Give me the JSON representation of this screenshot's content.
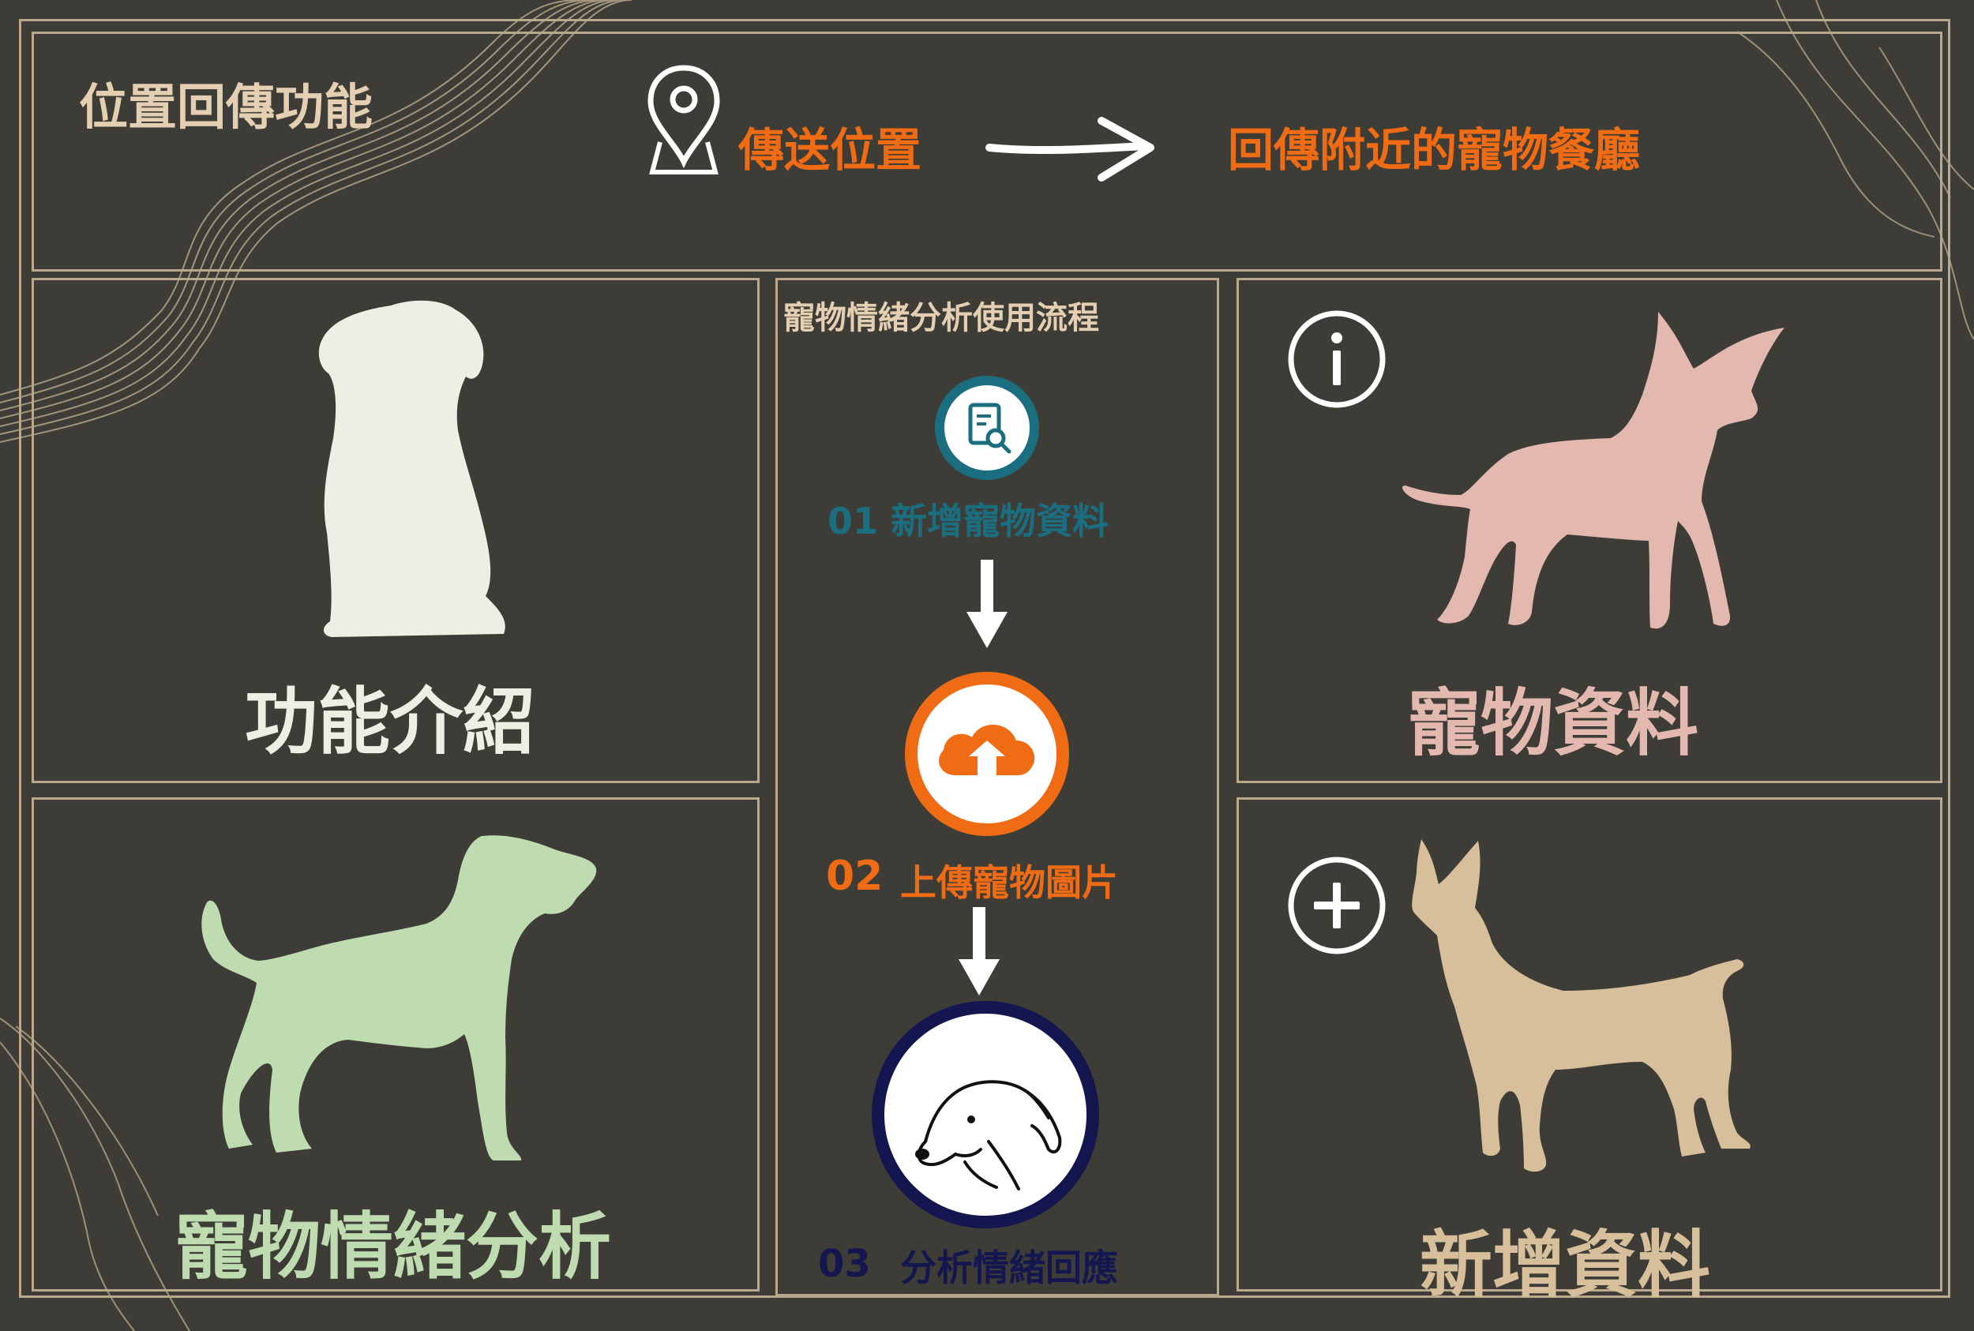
{
  "header": {
    "title": "位置回傳功能",
    "send_location": "傳送位置",
    "return_nearby": "回傳附近的寵物餐廳"
  },
  "panels": {
    "intro_label": "功能介紹",
    "emotion_label": "寵物情緒分析",
    "pet_info_label": "寵物資料",
    "add_data_label": "新增資料"
  },
  "flow": {
    "title": "寵物情緒分析使用流程",
    "step1": "01 新增寵物資料",
    "step2_num": "02",
    "step2_text": "上傳寵物圖片",
    "step3_num": "03",
    "step3_text": "分析情緒回應"
  },
  "colors": {
    "background": "#3d3c36",
    "frame": "#b9a88c",
    "header_text": "#e4cfb2",
    "orange": "#ef6c14",
    "teal": "#1a6e80",
    "navy": "#14164f",
    "cream": "#efeee3",
    "green": "#bfdcb0",
    "pink": "#e3b8ae",
    "tan": "#d6bf9a"
  },
  "icons": [
    "location-pin-icon",
    "arrow-right-icon",
    "info-icon",
    "plus-circle-icon",
    "document-search-icon",
    "cloud-upload-icon",
    "arrow-down-icon",
    "dog-face-icon"
  ]
}
